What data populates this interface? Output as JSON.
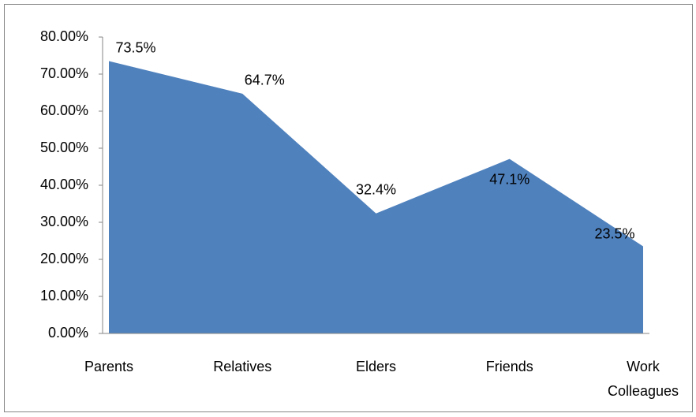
{
  "chart_data": {
    "type": "area",
    "categories": [
      "Parents",
      "Relatives",
      "Elders",
      "Friends",
      "Work Colleagues"
    ],
    "values": [
      73.5,
      64.7,
      32.4,
      47.1,
      23.5
    ],
    "value_labels": [
      "73.5%",
      "64.7%",
      "32.4%",
      "47.1%",
      "23.5%"
    ],
    "color": "#4f81bd",
    "ylim": [
      0,
      80
    ],
    "yticks": [
      {
        "value": 0,
        "label": "0.00%"
      },
      {
        "value": 10,
        "label": "10.00%"
      },
      {
        "value": 20,
        "label": "20.00%"
      },
      {
        "value": 30,
        "label": "30.00%"
      },
      {
        "value": 40,
        "label": "40.00%"
      },
      {
        "value": 50,
        "label": "50.00%"
      },
      {
        "value": 60,
        "label": "60.00%"
      },
      {
        "value": 70,
        "label": "70.00%"
      },
      {
        "value": 80,
        "label": "80.00%"
      }
    ],
    "grid": false
  }
}
